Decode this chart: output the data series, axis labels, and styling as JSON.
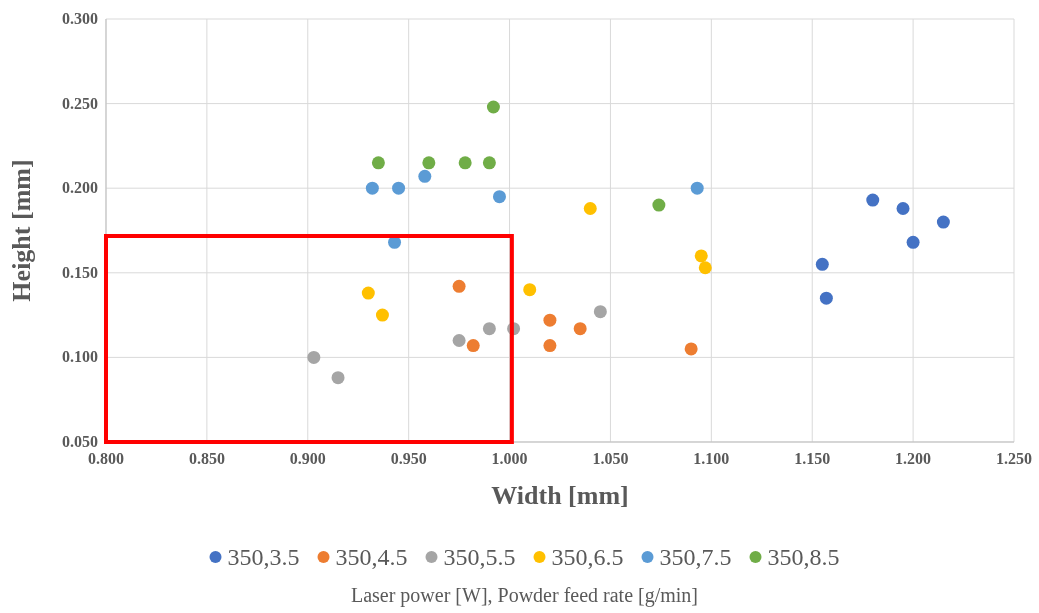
{
  "chart_data": {
    "type": "scatter",
    "xlabel": "Width [mm]",
    "ylabel": "Height [mm]",
    "legend_title": "Laser power [W], Powder feed rate [g/min]",
    "legend": "bottom",
    "grid": true,
    "marker": "circle",
    "xlim": [
      0.8,
      1.25
    ],
    "xticks": [
      {
        "value": 0.8,
        "label": "0.800"
      },
      {
        "value": 0.85,
        "label": "0.850"
      },
      {
        "value": 0.9,
        "label": "0.900"
      },
      {
        "value": 0.95,
        "label": "0.950"
      },
      {
        "value": 1.0,
        "label": "1.000"
      },
      {
        "value": 1.05,
        "label": "1.050"
      },
      {
        "value": 1.1,
        "label": "1.100"
      },
      {
        "value": 1.15,
        "label": "1.150"
      },
      {
        "value": 1.2,
        "label": "1.200"
      },
      {
        "value": 1.25,
        "label": "1.250"
      }
    ],
    "ylim": [
      0.05,
      0.3
    ],
    "yticks": [
      {
        "value": 0.05,
        "label": "0.050"
      },
      {
        "value": 0.1,
        "label": "0.100"
      },
      {
        "value": 0.15,
        "label": "0.150"
      },
      {
        "value": 0.2,
        "label": "0.200"
      },
      {
        "value": 0.25,
        "label": "0.250"
      },
      {
        "value": 0.3,
        "label": "0.300"
      }
    ],
    "series": [
      {
        "name": "350,3.5",
        "color": "#4472c4",
        "x": [
          1.155,
          1.157,
          1.18,
          1.195,
          1.2,
          1.215
        ],
        "values": [
          0.155,
          0.135,
          0.193,
          0.188,
          0.168,
          0.18
        ]
      },
      {
        "name": "350,4.5",
        "color": "#ed7d31",
        "x": [
          0.975,
          0.982,
          1.02,
          1.02,
          1.035,
          1.09
        ],
        "values": [
          0.142,
          0.107,
          0.122,
          0.107,
          0.117,
          0.105
        ]
      },
      {
        "name": "350,5.5",
        "color": "#a5a5a5",
        "x": [
          0.903,
          0.915,
          0.975,
          0.99,
          1.002,
          1.045
        ],
        "values": [
          0.1,
          0.088,
          0.11,
          0.117,
          0.117,
          0.127
        ]
      },
      {
        "name": "350,6.5",
        "color": "#ffc000",
        "x": [
          0.93,
          0.937,
          1.01,
          1.04,
          1.095,
          1.097
        ],
        "values": [
          0.138,
          0.125,
          0.14,
          0.188,
          0.16,
          0.153
        ]
      },
      {
        "name": "350,7.5",
        "color": "#5b9bd5",
        "x": [
          0.932,
          0.945,
          0.958,
          0.995,
          0.943,
          1.093
        ],
        "values": [
          0.2,
          0.2,
          0.207,
          0.195,
          0.168,
          0.2
        ]
      },
      {
        "name": "350,8.5",
        "color": "#70ad47",
        "x": [
          0.935,
          0.96,
          0.978,
          0.99,
          0.992,
          1.074
        ],
        "values": [
          0.215,
          0.215,
          0.215,
          0.215,
          0.248,
          0.19
        ]
      }
    ]
  }
}
